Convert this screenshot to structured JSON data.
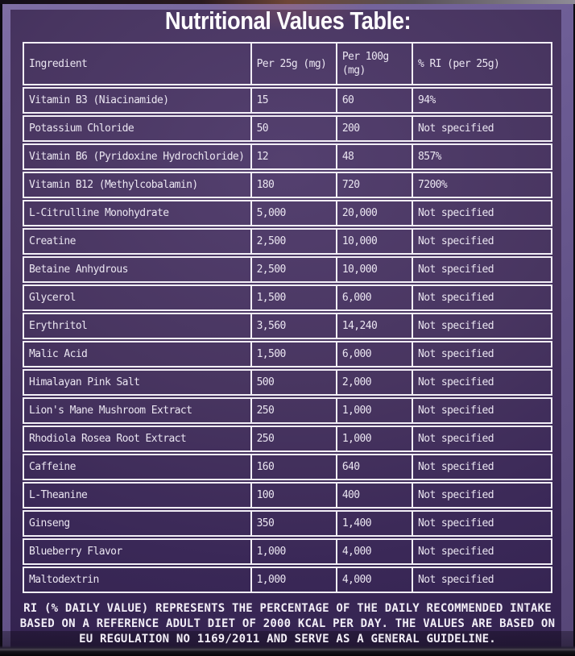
{
  "title": "Nutritional Values Table:",
  "table": {
    "columns": [
      "Ingredient",
      "Per 25g (mg)",
      "Per 100g (mg)",
      "% RI (per 25g)"
    ],
    "rows": [
      [
        "Vitamin B3 (Niacinamide)",
        "15",
        "60",
        "94%"
      ],
      [
        "Potassium Chloride",
        "50",
        "200",
        "Not specified"
      ],
      [
        "Vitamin B6 (Pyridoxine Hydrochloride)",
        "12",
        "48",
        "857%"
      ],
      [
        "Vitamin B12 (Methylcobalamin)",
        "180",
        "720",
        "7200%"
      ],
      [
        "L-Citrulline Monohydrate",
        "5,000",
        "20,000",
        "Not specified"
      ],
      [
        "Creatine",
        "2,500",
        "10,000",
        "Not specified"
      ],
      [
        "Betaine Anhydrous",
        "2,500",
        "10,000",
        "Not specified"
      ],
      [
        "Glycerol",
        "1,500",
        "6,000",
        "Not specified"
      ],
      [
        "Erythritol",
        "3,560",
        "14,240",
        "Not specified"
      ],
      [
        "Malic Acid",
        "1,500",
        "6,000",
        "Not specified"
      ],
      [
        "Himalayan Pink Salt",
        "500",
        "2,000",
        "Not specified"
      ],
      [
        "Lion's Mane Mushroom Extract",
        "250",
        "1,000",
        "Not specified"
      ],
      [
        "Rhodiola Rosea Root Extract",
        "250",
        "1,000",
        "Not specified"
      ],
      [
        "Caffeine",
        "160",
        "640",
        "Not specified"
      ],
      [
        "L-Theanine",
        "100",
        "400",
        "Not specified"
      ],
      [
        "Ginseng",
        "350",
        "1,400",
        "Not specified"
      ],
      [
        "Blueberry Flavor",
        "1,000",
        "4,000",
        "Not specified"
      ],
      [
        "Maltodextrin",
        "1,000",
        "4,000",
        "Not specified"
      ]
    ]
  },
  "footer": {
    "line1": "RI (% DAILY VALUE) REPRESENTS THE PERCENTAGE OF THE DAILY RECOMMENDED INTAKE",
    "line2": "BASED ON A REFERENCE ADULT DIET OF 2000 KCAL PER DAY. THE VALUES ARE BASED ON",
    "line3": "EU REGULATION NO 1169/2011 AND SERVE AS A GENERAL GUIDELINE."
  },
  "colors": {
    "panel_purple_center": "#54406f",
    "panel_purple_edge": "#2f1f4a",
    "frame_purple": "#6c5c94",
    "table_border": "#f2eef6",
    "text": "#eae5f1",
    "title_text": "#fdfcfe",
    "edge_black": "#0b0911"
  }
}
